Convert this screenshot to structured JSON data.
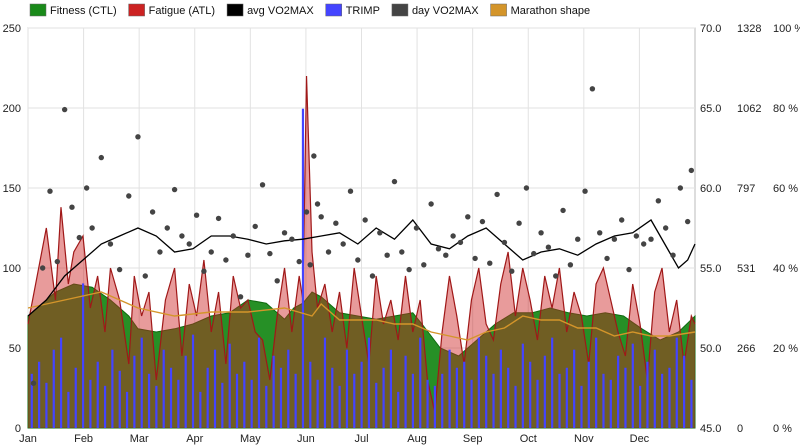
{
  "chart_data": {
    "type": "area",
    "legend": {
      "position": "top-left",
      "entries": [
        {
          "name": "Fitness (CTL)",
          "color": "#1a8a1a"
        },
        {
          "name": "Fatigue (ATL)",
          "color": "#cc2222"
        },
        {
          "name": "avg VO2MAX",
          "color": "#000000"
        },
        {
          "name": "TRIMP",
          "color": "#4444ff"
        },
        {
          "name": "day VO2MAX",
          "color": "#444444"
        },
        {
          "name": "Marathon shape",
          "color": "#d4952a"
        }
      ]
    },
    "x_ticks": [
      "Jan",
      "Feb",
      "Mar",
      "Apr",
      "May",
      "Jun",
      "Jul",
      "Aug",
      "Sep",
      "Oct",
      "Nov",
      "Dec"
    ],
    "x_range_days": [
      0,
      364
    ],
    "axes": {
      "left": {
        "range": [
          0,
          250
        ],
        "ticks": [
          "0",
          "50",
          "100",
          "150",
          "200",
          "250"
        ]
      },
      "vo2": {
        "range": [
          45,
          70
        ],
        "ticks": [
          "45.0",
          "50.0",
          "55.0",
          "60.0",
          "65.0",
          "70.0"
        ]
      },
      "trimp": {
        "range": [
          0,
          1328
        ],
        "ticks": [
          "0",
          "266",
          "531",
          "797",
          "1062",
          "1328"
        ]
      },
      "percent": {
        "range": [
          0,
          100
        ],
        "ticks": [
          "0 %",
          "20 %",
          "40 %",
          "60 %",
          "80 %",
          "100 %"
        ]
      }
    },
    "grid": true,
    "series": [
      {
        "name": "Fitness (CTL)",
        "axis": "left",
        "x": [
          0,
          15,
          25,
          35,
          45,
          55,
          60,
          70,
          80,
          90,
          100,
          110,
          120,
          130,
          140,
          145,
          150,
          155,
          160,
          170,
          180,
          190,
          200,
          210,
          215,
          225,
          235,
          245,
          255,
          265,
          275,
          285,
          295,
          305,
          315,
          325,
          335,
          345,
          355,
          364
        ],
        "values": [
          70,
          85,
          90,
          88,
          80,
          70,
          62,
          60,
          62,
          65,
          70,
          72,
          80,
          78,
          68,
          75,
          78,
          85,
          82,
          72,
          70,
          68,
          70,
          72,
          65,
          50,
          45,
          55,
          65,
          72,
          72,
          75,
          72,
          70,
          72,
          70,
          62,
          55,
          60,
          70
        ]
      },
      {
        "name": "Fatigue (ATL)",
        "axis": "left",
        "x": [
          0,
          5,
          10,
          15,
          18,
          22,
          25,
          30,
          34,
          38,
          42,
          45,
          50,
          55,
          58,
          62,
          66,
          70,
          75,
          80,
          84,
          88,
          92,
          96,
          100,
          104,
          108,
          112,
          116,
          120,
          124,
          128,
          132,
          136,
          140,
          144,
          148,
          150,
          152,
          155,
          158,
          162,
          166,
          170,
          174,
          178,
          182,
          186,
          190,
          194,
          198,
          202,
          206,
          210,
          214,
          218,
          222,
          226,
          230,
          234,
          238,
          242,
          246,
          250,
          254,
          258,
          262,
          266,
          270,
          274,
          278,
          282,
          286,
          290,
          294,
          298,
          302,
          306,
          310,
          314,
          318,
          322,
          326,
          330,
          334,
          338,
          342,
          346,
          350,
          354,
          358,
          362,
          364
        ],
        "values": [
          65,
          95,
          125,
          80,
          138,
          90,
          110,
          120,
          75,
          95,
          60,
          100,
          80,
          40,
          95,
          70,
          85,
          30,
          80,
          100,
          45,
          90,
          70,
          105,
          60,
          85,
          40,
          95,
          75,
          80,
          60,
          55,
          30,
          70,
          100,
          60,
          95,
          80,
          220,
          110,
          75,
          90,
          60,
          85,
          50,
          100,
          70,
          40,
          95,
          65,
          80,
          55,
          95,
          60,
          80,
          30,
          10,
          60,
          95,
          70,
          40,
          80,
          100,
          65,
          55,
          90,
          110,
          70,
          100,
          80,
          55,
          95,
          75,
          100,
          60,
          85,
          70,
          40,
          90,
          100,
          80,
          60,
          45,
          90,
          65,
          30,
          85,
          100,
          60,
          80,
          40,
          70,
          65
        ]
      },
      {
        "name": "avg VO2MAX",
        "axis": "vo2",
        "x": [
          0,
          10,
          20,
          30,
          40,
          50,
          60,
          70,
          80,
          90,
          100,
          110,
          120,
          130,
          140,
          150,
          160,
          170,
          180,
          190,
          200,
          210,
          220,
          230,
          240,
          250,
          260,
          270,
          280,
          290,
          300,
          310,
          320,
          330,
          340,
          350,
          355,
          360,
          364
        ],
        "values": [
          52,
          53,
          54.5,
          55.5,
          56.5,
          57,
          57.5,
          57,
          56,
          56.2,
          57,
          57,
          56.8,
          56.5,
          56.7,
          56.8,
          57,
          57.2,
          56.5,
          57.5,
          56.8,
          58,
          56.5,
          56.2,
          57,
          57.5,
          56.5,
          55.5,
          56,
          56.2,
          55.8,
          56.5,
          57,
          57.2,
          58,
          56,
          55,
          55.5,
          56.5
        ]
      },
      {
        "name": "TRIMP",
        "axis": "trimp",
        "x": [
          2,
          6,
          10,
          14,
          18,
          22,
          26,
          30,
          34,
          38,
          42,
          46,
          50,
          54,
          58,
          62,
          66,
          70,
          74,
          78,
          82,
          86,
          90,
          94,
          98,
          102,
          106,
          110,
          114,
          118,
          122,
          126,
          130,
          134,
          138,
          142,
          146,
          150,
          154,
          158,
          162,
          166,
          170,
          174,
          178,
          182,
          186,
          190,
          194,
          198,
          202,
          206,
          210,
          214,
          218,
          222,
          226,
          230,
          234,
          238,
          242,
          246,
          250,
          254,
          258,
          262,
          266,
          270,
          274,
          278,
          282,
          286,
          290,
          294,
          298,
          302,
          306,
          310,
          314,
          318,
          322,
          326,
          330,
          334,
          338,
          342,
          346,
          350,
          354,
          358,
          362
        ],
        "values": [
          180,
          220,
          150,
          260,
          300,
          120,
          200,
          480,
          160,
          220,
          140,
          260,
          190,
          120,
          240,
          300,
          180,
          140,
          260,
          200,
          160,
          240,
          310,
          120,
          200,
          260,
          150,
          280,
          180,
          220,
          160,
          300,
          140,
          240,
          200,
          260,
          180,
          1060,
          220,
          160,
          300,
          200,
          140,
          260,
          180,
          220,
          300,
          150,
          200,
          260,
          120,
          240,
          180,
          300,
          160,
          140,
          180,
          260,
          200,
          220,
          160,
          300,
          240,
          180,
          260,
          200,
          140,
          280,
          220,
          160,
          240,
          300,
          180,
          200,
          260,
          140,
          220,
          300,
          180,
          160,
          240,
          200,
          280,
          140,
          220,
          260,
          180,
          200,
          300,
          240,
          160
        ]
      },
      {
        "name": "day VO2MAX",
        "axis": "vo2",
        "type": "scatter",
        "x": [
          3,
          8,
          12,
          16,
          20,
          24,
          28,
          32,
          35,
          40,
          45,
          50,
          55,
          60,
          64,
          68,
          72,
          76,
          80,
          84,
          88,
          92,
          96,
          100,
          104,
          108,
          112,
          116,
          120,
          124,
          128,
          132,
          136,
          140,
          144,
          148,
          152,
          154,
          156,
          158,
          160,
          164,
          168,
          172,
          176,
          180,
          184,
          188,
          192,
          196,
          200,
          204,
          208,
          212,
          216,
          220,
          224,
          228,
          232,
          236,
          240,
          244,
          248,
          252,
          256,
          260,
          264,
          268,
          272,
          276,
          280,
          284,
          288,
          292,
          296,
          300,
          304,
          308,
          312,
          316,
          320,
          324,
          328,
          332,
          336,
          340,
          344,
          348,
          352,
          356,
          360,
          362
        ],
        "values": [
          47.8,
          55,
          59.8,
          55.4,
          64.9,
          58.8,
          56.9,
          60,
          57.5,
          61.9,
          56.5,
          54.9,
          59.5,
          63.2,
          54.5,
          58.5,
          56,
          57.5,
          59.9,
          57,
          56.5,
          58.3,
          54.8,
          56,
          58.1,
          55.5,
          57,
          53.2,
          55.8,
          57.6,
          60.2,
          55.9,
          54.2,
          57.2,
          56.8,
          55.4,
          58.5,
          55.2,
          62,
          59,
          58.2,
          56,
          57.8,
          56.5,
          59.8,
          55.5,
          58,
          54.5,
          57.2,
          55.8,
          60.4,
          56,
          54.9,
          57.5,
          55.2,
          59,
          56.2,
          55.8,
          57,
          56.6,
          58.2,
          55.6,
          57.9,
          55.3,
          59.6,
          56.6,
          54.8,
          57.8,
          60,
          55.9,
          57.2,
          56.3,
          54.5,
          58.6,
          55.2,
          56.8,
          59.8,
          66.2,
          57.2,
          55.6,
          56.8,
          58,
          54.9,
          57,
          56.5,
          56.8,
          59.2,
          57.5,
          55.8,
          60,
          57.9,
          61.1
        ]
      },
      {
        "name": "Marathon shape",
        "axis": "percent",
        "x": [
          0,
          20,
          40,
          60,
          80,
          100,
          120,
          140,
          155,
          160,
          170,
          180,
          190,
          200,
          210,
          220,
          230,
          240,
          250,
          260,
          270,
          280,
          290,
          300,
          310,
          320,
          330,
          340,
          350,
          364
        ],
        "values": [
          30,
          32,
          34,
          30,
          28,
          29,
          29,
          30,
          28,
          31,
          27,
          27,
          27,
          26,
          26,
          24,
          23,
          22,
          24,
          25,
          28,
          27,
          27,
          25,
          25,
          23,
          24,
          23,
          23,
          24
        ]
      }
    ]
  }
}
